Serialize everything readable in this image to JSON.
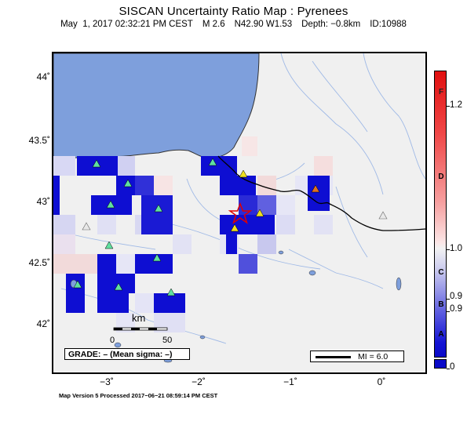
{
  "header": {
    "title": "SISCAN Uncertainty Ratio Map : Pyrenees",
    "date": "May  1, 2017 02:32:21 PM CEST",
    "magnitude": "M 2.6",
    "location": "N42.90 W1.53",
    "depth": "Depth: −0.8km",
    "event_id": "ID:10988"
  },
  "axes": {
    "lat_labels": [
      "44˚",
      "43.5˚",
      "43˚",
      "42.5˚",
      "42˚"
    ],
    "lon_labels": [
      "−3˚",
      "−2˚",
      "−1˚",
      "0˚"
    ]
  },
  "scale_bar": {
    "unit": "km",
    "min": "0",
    "max": "50"
  },
  "grade_box": {
    "text": "GRADE: – (Mean sigma: –)"
  },
  "mi_box": {
    "text": "MI = 6.0"
  },
  "legend": {
    "grades": [
      "F",
      "D",
      "C",
      "B",
      "A"
    ],
    "ticks": [
      "1.2",
      "1.0",
      "0.9",
      "0.9",
      "0"
    ]
  },
  "footer": "Map Version 5 Processed 2017−06−21 08:59:14 PM CEST",
  "colors": {
    "sea": "#7e9fdc",
    "land": "#f0f0f0",
    "river": "#9fb9e6",
    "border": "#000000",
    "cell_dark": "#0e0ed2",
    "station": "#60e0a0",
    "epicenter": "#e00000"
  },
  "symbols": {
    "station": "triangle-icon",
    "epicenter": "star-icon"
  }
}
